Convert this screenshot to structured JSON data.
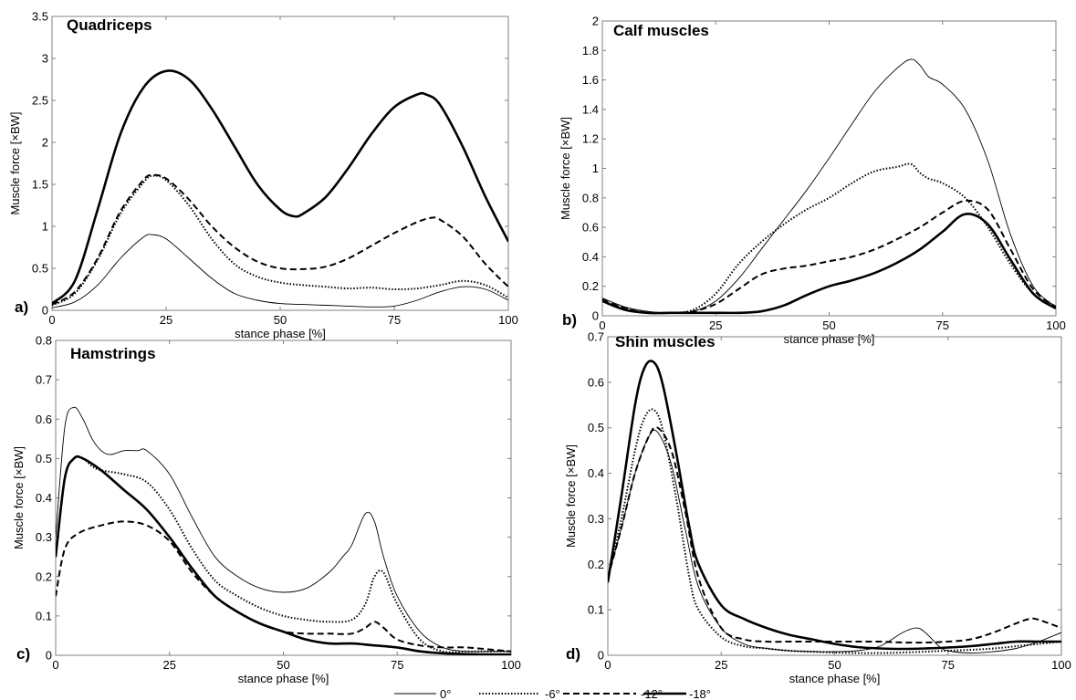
{
  "chart_data": [
    {
      "type": "line",
      "panel_label": "a)",
      "title": "Quadriceps",
      "xlabel": "stance phase [%]",
      "ylabel": "Muscle force [×BW]",
      "xlim": [
        0,
        100
      ],
      "ylim": [
        0,
        3.5
      ],
      "xticks": [
        0,
        25,
        50,
        75,
        100
      ],
      "yticks": [
        0,
        0.5,
        1,
        1.5,
        2,
        2.5,
        3,
        3.5
      ],
      "ytick_labels": [
        "0",
        "0.5",
        "1",
        "1.5",
        "2",
        "2.5",
        "3",
        "3.5"
      ],
      "series": [
        {
          "name": "0°",
          "x": [
            0,
            5,
            10,
            15,
            20,
            22,
            25,
            30,
            35,
            40,
            45,
            50,
            55,
            60,
            65,
            70,
            75,
            80,
            85,
            90,
            95,
            100
          ],
          "values": [
            0.03,
            0.1,
            0.3,
            0.62,
            0.87,
            0.9,
            0.85,
            0.62,
            0.38,
            0.2,
            0.12,
            0.08,
            0.07,
            0.06,
            0.05,
            0.04,
            0.05,
            0.12,
            0.22,
            0.28,
            0.25,
            0.12
          ]
        },
        {
          "name": "-6°",
          "x": [
            0,
            5,
            10,
            15,
            20,
            22,
            25,
            30,
            35,
            40,
            45,
            50,
            55,
            60,
            65,
            70,
            75,
            80,
            85,
            90,
            95,
            100
          ],
          "values": [
            0.06,
            0.2,
            0.6,
            1.15,
            1.52,
            1.6,
            1.55,
            1.25,
            0.85,
            0.55,
            0.4,
            0.33,
            0.3,
            0.28,
            0.26,
            0.27,
            0.25,
            0.26,
            0.3,
            0.35,
            0.3,
            0.15
          ]
        },
        {
          "name": "-12°",
          "x": [
            0,
            5,
            10,
            15,
            20,
            22,
            25,
            30,
            35,
            40,
            45,
            50,
            55,
            60,
            65,
            70,
            75,
            80,
            83,
            85,
            90,
            95,
            100
          ],
          "values": [
            0.07,
            0.22,
            0.62,
            1.18,
            1.55,
            1.61,
            1.57,
            1.32,
            1.0,
            0.75,
            0.58,
            0.5,
            0.49,
            0.52,
            0.62,
            0.77,
            0.92,
            1.05,
            1.1,
            1.08,
            0.88,
            0.55,
            0.28
          ]
        },
        {
          "name": "-18°",
          "x": [
            0,
            5,
            10,
            15,
            20,
            25,
            30,
            35,
            40,
            45,
            50,
            53,
            55,
            60,
            65,
            70,
            75,
            80,
            82,
            85,
            90,
            95,
            100
          ],
          "values": [
            0.08,
            0.35,
            1.2,
            2.1,
            2.65,
            2.85,
            2.75,
            2.4,
            1.95,
            1.5,
            1.2,
            1.12,
            1.15,
            1.35,
            1.7,
            2.1,
            2.42,
            2.57,
            2.57,
            2.45,
            1.95,
            1.35,
            0.82
          ]
        }
      ]
    },
    {
      "type": "line",
      "panel_label": "b)",
      "title": "Calf muscles",
      "xlabel": "stance phase [%]",
      "ylabel": "Muscle force [×BW]",
      "xlim": [
        0,
        100
      ],
      "ylim": [
        0,
        2
      ],
      "xticks": [
        0,
        25,
        50,
        75,
        100
      ],
      "yticks": [
        0,
        0.2,
        0.4,
        0.6,
        0.8,
        1,
        1.2,
        1.4,
        1.6,
        1.8,
        2
      ],
      "ytick_labels": [
        "0",
        "0.2",
        "0.4",
        "0.6",
        "0.8",
        "1",
        "1.2",
        "1.4",
        "1.6",
        "1.8",
        "2"
      ],
      "series": [
        {
          "name": "0°",
          "x": [
            0,
            5,
            10,
            15,
            20,
            25,
            30,
            35,
            40,
            45,
            50,
            55,
            60,
            65,
            68,
            70,
            72,
            75,
            80,
            85,
            90,
            95,
            100
          ],
          "values": [
            0.12,
            0.06,
            0.03,
            0.02,
            0.03,
            0.1,
            0.25,
            0.45,
            0.65,
            0.85,
            1.07,
            1.3,
            1.52,
            1.68,
            1.74,
            1.7,
            1.62,
            1.57,
            1.4,
            1.05,
            0.55,
            0.2,
            0.06
          ]
        },
        {
          "name": "-6°",
          "x": [
            0,
            5,
            10,
            15,
            20,
            25,
            30,
            35,
            40,
            45,
            50,
            55,
            60,
            65,
            68,
            70,
            72,
            75,
            80,
            85,
            90,
            95,
            100
          ],
          "values": [
            0.1,
            0.05,
            0.02,
            0.02,
            0.04,
            0.15,
            0.35,
            0.5,
            0.62,
            0.72,
            0.8,
            0.9,
            0.98,
            1.01,
            1.03,
            0.97,
            0.93,
            0.9,
            0.8,
            0.6,
            0.35,
            0.15,
            0.06
          ]
        },
        {
          "name": "-12°",
          "x": [
            0,
            5,
            10,
            15,
            20,
            25,
            30,
            35,
            40,
            45,
            50,
            55,
            60,
            65,
            70,
            75,
            80,
            85,
            90,
            95,
            100
          ],
          "values": [
            0.11,
            0.05,
            0.02,
            0.02,
            0.03,
            0.08,
            0.18,
            0.28,
            0.32,
            0.34,
            0.37,
            0.4,
            0.45,
            0.52,
            0.6,
            0.7,
            0.78,
            0.72,
            0.45,
            0.18,
            0.06
          ]
        },
        {
          "name": "-18°",
          "x": [
            0,
            5,
            10,
            15,
            20,
            25,
            30,
            35,
            40,
            45,
            50,
            55,
            60,
            65,
            70,
            75,
            80,
            85,
            90,
            95,
            100
          ],
          "values": [
            0.1,
            0.04,
            0.02,
            0.02,
            0.02,
            0.02,
            0.02,
            0.03,
            0.07,
            0.14,
            0.2,
            0.24,
            0.29,
            0.36,
            0.45,
            0.57,
            0.69,
            0.62,
            0.38,
            0.15,
            0.05
          ]
        }
      ]
    },
    {
      "type": "line",
      "panel_label": "c)",
      "title": "Hamstrings",
      "xlabel": "stance phase [%]",
      "ylabel": "Muscle force [×BW]",
      "xlim": [
        0,
        100
      ],
      "ylim": [
        0,
        0.8
      ],
      "xticks": [
        0,
        25,
        50,
        75,
        100
      ],
      "yticks": [
        0,
        0.1,
        0.2,
        0.3,
        0.4,
        0.5,
        0.6,
        0.7,
        0.8
      ],
      "ytick_labels": [
        "0",
        "0.1",
        "0.2",
        "0.3",
        "0.4",
        "0.5",
        "0.6",
        "0.7",
        "0.8"
      ],
      "series": [
        {
          "name": "0°",
          "x": [
            0,
            2,
            4,
            6,
            8,
            10,
            12,
            15,
            18,
            20,
            25,
            30,
            35,
            40,
            45,
            50,
            55,
            60,
            63,
            65,
            68,
            70,
            72,
            75,
            80,
            85,
            90,
            95,
            100
          ],
          "values": [
            0.3,
            0.58,
            0.63,
            0.6,
            0.55,
            0.52,
            0.51,
            0.52,
            0.52,
            0.52,
            0.46,
            0.35,
            0.25,
            0.2,
            0.17,
            0.16,
            0.17,
            0.21,
            0.25,
            0.28,
            0.36,
            0.34,
            0.25,
            0.15,
            0.06,
            0.02,
            0.01,
            0.01,
            0.01
          ]
        },
        {
          "name": "-6°",
          "x": [
            0,
            2,
            4,
            6,
            8,
            10,
            15,
            20,
            25,
            30,
            35,
            40,
            45,
            50,
            55,
            60,
            65,
            68,
            70,
            72,
            75,
            80,
            85,
            90,
            95,
            100
          ],
          "values": [
            0.25,
            0.45,
            0.5,
            0.5,
            0.48,
            0.47,
            0.46,
            0.44,
            0.37,
            0.27,
            0.19,
            0.15,
            0.12,
            0.1,
            0.09,
            0.085,
            0.09,
            0.13,
            0.2,
            0.21,
            0.13,
            0.04,
            0.01,
            0.01,
            0.01,
            0.01
          ]
        },
        {
          "name": "-12°",
          "x": [
            0,
            2,
            5,
            10,
            15,
            20,
            25,
            30,
            35,
            40,
            45,
            50,
            55,
            60,
            65,
            68,
            70,
            72,
            75,
            80,
            85,
            90,
            95,
            100
          ],
          "values": [
            0.15,
            0.27,
            0.31,
            0.33,
            0.34,
            0.33,
            0.29,
            0.21,
            0.15,
            0.11,
            0.08,
            0.06,
            0.055,
            0.055,
            0.055,
            0.07,
            0.085,
            0.07,
            0.04,
            0.025,
            0.02,
            0.02,
            0.015,
            0.01
          ]
        },
        {
          "name": "-18°",
          "x": [
            0,
            2,
            4,
            6,
            10,
            15,
            20,
            25,
            30,
            35,
            40,
            45,
            50,
            55,
            60,
            65,
            70,
            75,
            80,
            85,
            90,
            95,
            100
          ],
          "values": [
            0.25,
            0.45,
            0.5,
            0.5,
            0.47,
            0.42,
            0.37,
            0.3,
            0.22,
            0.15,
            0.11,
            0.08,
            0.06,
            0.04,
            0.03,
            0.03,
            0.025,
            0.02,
            0.01,
            0.005,
            0.003,
            0.002,
            0.002
          ]
        }
      ]
    },
    {
      "type": "line",
      "panel_label": "d)",
      "title": "Shin muscles",
      "xlabel": "stance phase [%]",
      "ylabel": "Muscle force [×BW]",
      "xlim": [
        0,
        100
      ],
      "ylim": [
        0,
        0.7
      ],
      "xticks": [
        0,
        25,
        50,
        75,
        100
      ],
      "yticks": [
        0,
        0.1,
        0.2,
        0.3,
        0.4,
        0.5,
        0.6,
        0.7
      ],
      "ytick_labels": [
        "0",
        "0.1",
        "0.2",
        "0.3",
        "0.4",
        "0.5",
        "0.6",
        "0.7"
      ],
      "series": [
        {
          "name": "0°",
          "x": [
            0,
            3,
            6,
            9,
            11,
            14,
            17,
            20,
            25,
            30,
            35,
            40,
            45,
            50,
            55,
            60,
            65,
            68,
            70,
            73,
            75,
            80,
            85,
            90,
            95,
            100
          ],
          "values": [
            0.17,
            0.28,
            0.4,
            0.48,
            0.49,
            0.42,
            0.28,
            0.15,
            0.06,
            0.025,
            0.015,
            0.01,
            0.008,
            0.008,
            0.01,
            0.02,
            0.05,
            0.06,
            0.05,
            0.02,
            0.01,
            0.005,
            0.008,
            0.015,
            0.03,
            0.05
          ]
        },
        {
          "name": "-6°",
          "x": [
            0,
            3,
            6,
            8,
            10,
            12,
            15,
            18,
            20,
            25,
            30,
            35,
            40,
            45,
            50,
            55,
            60,
            65,
            70,
            75,
            80,
            85,
            90,
            95,
            100
          ],
          "values": [
            0.17,
            0.3,
            0.45,
            0.52,
            0.54,
            0.5,
            0.35,
            0.17,
            0.1,
            0.04,
            0.02,
            0.015,
            0.01,
            0.008,
            0.006,
            0.005,
            0.005,
            0.006,
            0.008,
            0.01,
            0.012,
            0.015,
            0.02,
            0.025,
            0.03
          ]
        },
        {
          "name": "-12°",
          "x": [
            0,
            3,
            6,
            9,
            11,
            14,
            17,
            20,
            25,
            30,
            35,
            40,
            45,
            50,
            55,
            60,
            65,
            70,
            75,
            80,
            85,
            90,
            93,
            95,
            100
          ],
          "values": [
            0.17,
            0.28,
            0.4,
            0.48,
            0.5,
            0.45,
            0.32,
            0.17,
            0.06,
            0.035,
            0.03,
            0.03,
            0.03,
            0.03,
            0.03,
            0.03,
            0.028,
            0.028,
            0.03,
            0.035,
            0.05,
            0.07,
            0.08,
            0.078,
            0.06
          ]
        },
        {
          "name": "-18°",
          "x": [
            0,
            3,
            6,
            8,
            10,
            12,
            15,
            18,
            20,
            25,
            30,
            35,
            40,
            45,
            50,
            55,
            60,
            65,
            70,
            75,
            80,
            85,
            90,
            95,
            100
          ],
          "values": [
            0.16,
            0.35,
            0.55,
            0.63,
            0.645,
            0.6,
            0.45,
            0.28,
            0.2,
            0.11,
            0.08,
            0.06,
            0.045,
            0.035,
            0.025,
            0.018,
            0.015,
            0.014,
            0.015,
            0.017,
            0.02,
            0.025,
            0.03,
            0.03,
            0.03
          ]
        }
      ]
    }
  ],
  "legend": {
    "placement": "bottom-center",
    "entries": [
      {
        "label": "0°",
        "style": "thin-solid"
      },
      {
        "label": "-6°",
        "style": "dotted"
      },
      {
        "label": "-12°",
        "style": "dashed"
      },
      {
        "label": "-18°",
        "style": "thick-solid"
      }
    ]
  },
  "colors": {
    "line": "#000000",
    "frame": "#808080",
    "background": "#ffffff"
  }
}
